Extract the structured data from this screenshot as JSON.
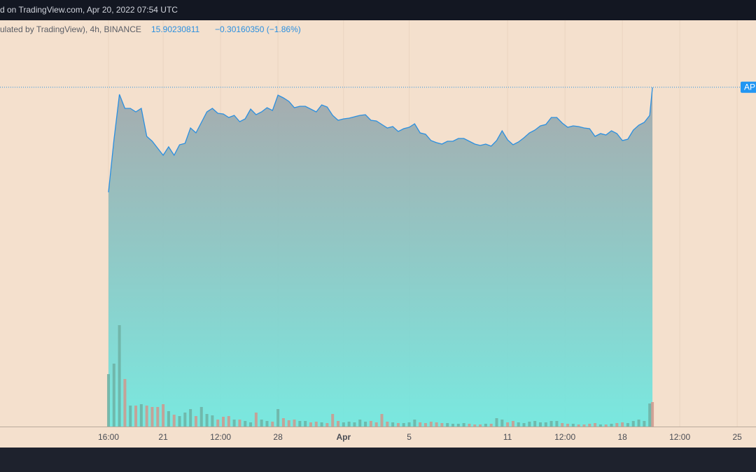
{
  "chart_data": {
    "type": "area",
    "title": "d on TradingView.com, Apr 20, 2022 07:54 UTC",
    "subtitle": "ulated by TradingView), 4h, BINANCE",
    "last_price": 15.90230811,
    "change_label": "−0.30160350 (−1.86%)",
    "x": [
      0,
      2,
      4,
      6,
      8,
      10,
      12,
      14,
      16,
      18,
      20,
      22,
      24,
      26,
      28,
      30,
      32,
      34,
      36,
      38,
      40,
      42,
      44,
      46,
      48,
      50,
      52,
      54,
      56,
      58,
      60,
      62,
      64,
      66,
      68,
      70,
      72,
      74,
      76,
      78,
      80,
      82,
      84,
      86,
      88,
      90,
      92,
      94,
      96,
      98,
      100,
      102,
      104,
      106,
      108,
      110,
      112,
      114,
      116,
      118,
      120,
      122,
      124,
      126,
      128,
      130,
      132,
      134,
      136,
      138,
      140,
      142,
      144,
      146,
      148,
      150,
      152,
      154,
      156,
      158,
      160,
      162,
      164,
      166,
      168,
      170,
      172,
      174,
      176,
      178,
      180,
      182,
      184,
      186,
      188,
      190,
      192,
      194,
      196,
      198,
      199
    ],
    "xlim": [
      -39.69,
      236.88
    ],
    "xticks": [
      {
        "value": 0,
        "label": "16:00"
      },
      {
        "value": 20,
        "label": "21"
      },
      {
        "value": 41,
        "label": "12:00"
      },
      {
        "value": 62,
        "label": "28"
      },
      {
        "value": 86,
        "label": "Apr"
      },
      {
        "value": 110,
        "label": "5"
      },
      {
        "value": 146,
        "label": "11"
      },
      {
        "value": 167,
        "label": "12:00"
      },
      {
        "value": 188,
        "label": "18"
      },
      {
        "value": 209,
        "label": "12:00"
      },
      {
        "value": 230,
        "label": "25"
      }
    ],
    "ylim": [
      11.05,
      16.6
    ],
    "grid": true,
    "series": [
      {
        "name": "APE",
        "color": "#2a8fe0",
        "values": [
          14.4,
          15.15,
          15.8,
          15.6,
          15.6,
          15.55,
          15.6,
          15.2,
          15.13,
          15.03,
          14.93,
          15.05,
          14.93,
          15.08,
          15.1,
          15.32,
          15.25,
          15.4,
          15.55,
          15.6,
          15.53,
          15.52,
          15.47,
          15.5,
          15.41,
          15.45,
          15.59,
          15.51,
          15.55,
          15.61,
          15.57,
          15.79,
          15.75,
          15.7,
          15.61,
          15.63,
          15.63,
          15.59,
          15.55,
          15.65,
          15.62,
          15.5,
          15.43,
          15.45,
          15.46,
          15.48,
          15.5,
          15.51,
          15.43,
          15.42,
          15.37,
          15.32,
          15.34,
          15.27,
          15.31,
          15.33,
          15.38,
          15.25,
          15.23,
          15.14,
          15.11,
          15.09,
          15.13,
          15.13,
          15.17,
          15.17,
          15.13,
          15.09,
          15.07,
          15.09,
          15.06,
          15.14,
          15.28,
          15.15,
          15.08,
          15.12,
          15.18,
          15.25,
          15.29,
          15.35,
          15.37,
          15.47,
          15.47,
          15.39,
          15.33,
          15.35,
          15.34,
          15.32,
          15.31,
          15.2,
          15.24,
          15.22,
          15.28,
          15.24,
          15.14,
          15.16,
          15.29,
          15.36,
          15.4,
          15.5,
          15.9
        ]
      }
    ],
    "volume": {
      "up_color": "#6fb0a3",
      "down_color": "#d0978c",
      "lim": [
        0,
        555
      ],
      "values": [
        75,
        90,
        145,
        68,
        30,
        30,
        32,
        30,
        28,
        28,
        32,
        22,
        17,
        15,
        20,
        25,
        15,
        28,
        18,
        16,
        10,
        14,
        15,
        10,
        10,
        8,
        6,
        20,
        10,
        8,
        7,
        25,
        12,
        9,
        10,
        8,
        8,
        6,
        7,
        6,
        5,
        18,
        8,
        6,
        7,
        6,
        10,
        7,
        8,
        6,
        18,
        7,
        6,
        5,
        5,
        6,
        10,
        6,
        5,
        7,
        6,
        5,
        5,
        4,
        4,
        5,
        4,
        3,
        3,
        4,
        4,
        12,
        10,
        6,
        8,
        6,
        5,
        7,
        8,
        6,
        6,
        8,
        8,
        5,
        4,
        4,
        3,
        3,
        4,
        5,
        3,
        3,
        4,
        5,
        6,
        5,
        8,
        10,
        8,
        33,
        35
      ]
    }
  }
}
